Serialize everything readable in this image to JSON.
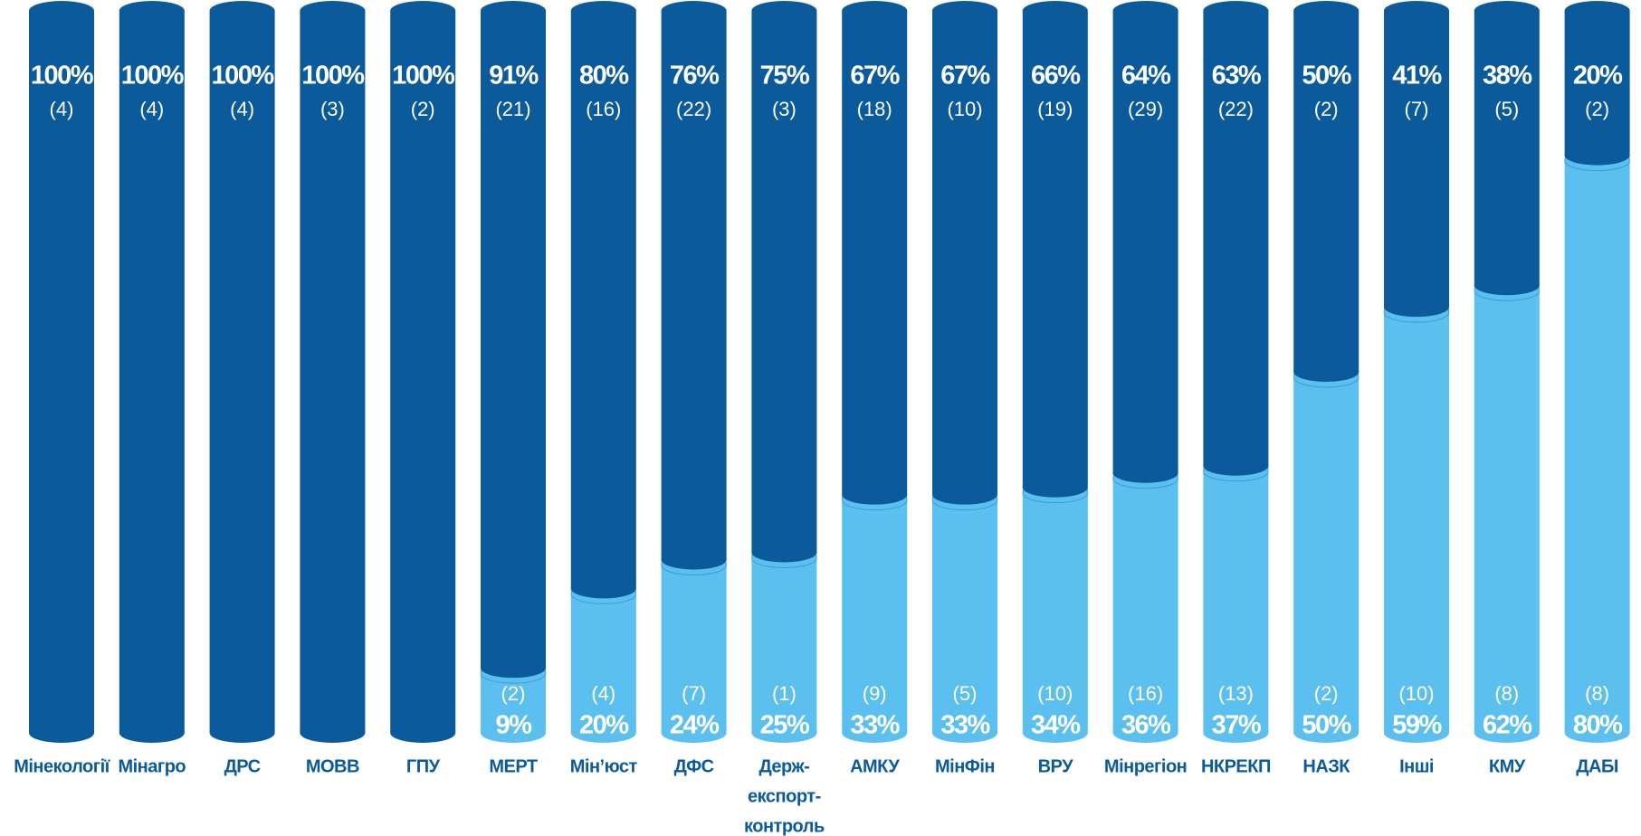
{
  "chart_data": {
    "type": "stacked-cylinder",
    "categories": [
      "Мінекології",
      "Мінагро",
      "ДРС",
      "МОВВ",
      "ГПУ",
      "МЕРТ",
      "Мін’юст",
      "ДФС",
      [
        "Держ-",
        "експорт-",
        "контроль"
      ],
      "АМКУ",
      "МінФін",
      "ВРУ",
      "Мінрегіон",
      "НКРЕКП",
      "НАЗК",
      "Інші",
      "КМУ",
      "ДАБІ"
    ],
    "ylim": [
      0,
      100
    ],
    "series": [
      {
        "color": "#5bc0ef",
        "values": [
          null,
          null,
          null,
          null,
          null,
          9,
          20,
          24,
          25,
          33,
          33,
          34,
          36,
          37,
          50,
          59,
          62,
          80
        ],
        "value_labels": [
          null,
          null,
          null,
          null,
          null,
          "9%",
          "20%",
          "24%",
          "25%",
          "33%",
          "33%",
          "34%",
          "36%",
          "37%",
          "50%",
          "59%",
          "62%",
          "80%"
        ],
        "counts": [
          null,
          null,
          null,
          null,
          null,
          2,
          4,
          7,
          1,
          9,
          5,
          10,
          16,
          13,
          2,
          10,
          8,
          8
        ],
        "count_labels": [
          null,
          null,
          null,
          null,
          null,
          "(2)",
          "(4)",
          "(7)",
          "(1)",
          "(9)",
          "(5)",
          "(10)",
          "(16)",
          "(13)",
          "(2)",
          "(10)",
          "(8)",
          "(8)"
        ]
      },
      {
        "color": "#0a5a9c",
        "values": [
          100,
          100,
          100,
          100,
          100,
          91,
          80,
          76,
          75,
          67,
          67,
          66,
          64,
          63,
          50,
          41,
          38,
          20
        ],
        "value_labels": [
          "100%",
          "100%",
          "100%",
          "100%",
          "100%",
          "91%",
          "80%",
          "76%",
          "75%",
          "67%",
          "67%",
          "66%",
          "64%",
          "63%",
          "50%",
          "41%",
          "38%",
          "20%"
        ],
        "counts": [
          4,
          4,
          4,
          3,
          2,
          21,
          16,
          22,
          3,
          18,
          10,
          19,
          29,
          22,
          2,
          7,
          5,
          2
        ],
        "count_labels": [
          "(4)",
          "(4)",
          "(4)",
          "(3)",
          "(2)",
          "(21)",
          "(16)",
          "(22)",
          "(3)",
          "(18)",
          "(10)",
          "(19)",
          "(29)",
          "(22)",
          "(2)",
          "(7)",
          "(5)",
          "(2)"
        ]
      }
    ]
  }
}
